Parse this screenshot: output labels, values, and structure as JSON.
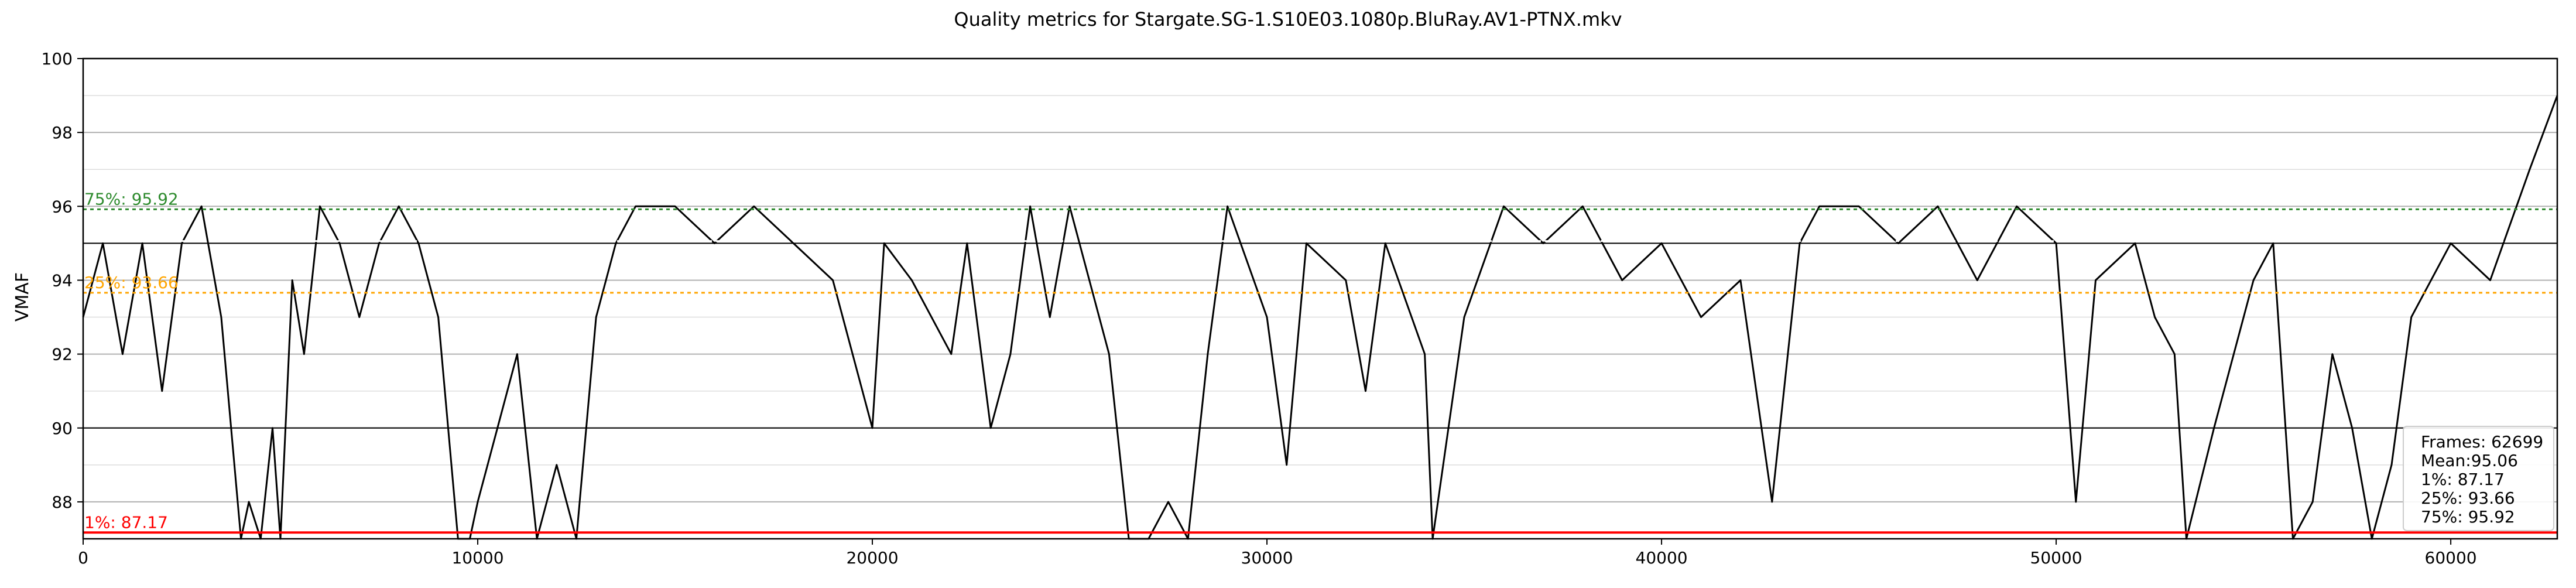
{
  "chart_data": {
    "type": "line",
    "title": "Quality metrics for Stargate.SG-1.S10E03.1080p.BluRay.AV1-PTNX.mkv",
    "xlabel": "",
    "ylabel": "VMAF",
    "xlim": [
      0,
      62699
    ],
    "ylim": [
      87,
      100
    ],
    "x_ticks": [
      "0",
      "10000",
      "20000",
      "30000",
      "40000",
      "50000",
      "60000"
    ],
    "y_ticks": [
      "88",
      "90",
      "92",
      "94",
      "96",
      "98",
      "100"
    ],
    "grid": true,
    "series": [
      {
        "color": "#000000",
        "x": [
          0,
          500,
          1000,
          1500,
          2000,
          2500,
          3000,
          3500,
          4000,
          4200,
          4500,
          4800,
          5000,
          5300,
          5600,
          6000,
          6500,
          7000,
          7500,
          8000,
          8500,
          9000,
          9500,
          9800,
          10000,
          10500,
          11000,
          11500,
          12000,
          12500,
          13000,
          13500,
          14000,
          15000,
          16000,
          17000,
          18000,
          19000,
          20000,
          20300,
          21000,
          22000,
          22400,
          23000,
          23500,
          24000,
          24500,
          25000,
          25500,
          26000,
          26500,
          27000,
          27500,
          28000,
          28500,
          29000,
          30000,
          30500,
          31000,
          32000,
          32500,
          33000,
          34000,
          34200,
          35000,
          36000,
          37000,
          38000,
          39000,
          40000,
          41000,
          42000,
          42800,
          43500,
          44000,
          45000,
          46000,
          47000,
          48000,
          49000,
          50000,
          50500,
          51000,
          52000,
          52500,
          53000,
          53300,
          54000,
          55000,
          55500,
          56000,
          56500,
          57000,
          57500,
          58000,
          58500,
          59000,
          60000,
          61000,
          62000,
          62699
        ],
        "values": [
          93,
          95,
          92,
          95,
          91,
          95,
          96,
          93,
          87,
          88,
          87,
          90,
          87,
          94,
          92,
          96,
          95,
          93,
          95,
          96,
          95,
          93,
          87,
          87,
          88,
          90,
          92,
          87,
          89,
          87,
          93,
          95,
          96,
          96,
          95,
          96,
          95,
          94,
          90,
          95,
          94,
          92,
          95,
          90,
          92,
          96,
          93,
          96,
          94,
          92,
          87,
          87,
          88,
          87,
          92,
          96,
          93,
          89,
          95,
          94,
          91,
          95,
          92,
          87,
          93,
          96,
          95,
          96,
          94,
          95,
          93,
          94,
          88,
          95,
          96,
          96,
          95,
          96,
          94,
          96,
          95,
          88,
          94,
          95,
          93,
          92,
          87,
          90,
          94,
          95,
          87,
          88,
          92,
          90,
          87,
          89,
          93,
          95,
          94,
          97,
          99
        ]
      }
    ],
    "reference_lines": [
      {
        "label": "75%: 95.92",
        "value": 95.92,
        "color": "#2e8b2e",
        "style": "dotted"
      },
      {
        "label": "Mean: 95.06",
        "value": 95.06,
        "color": "#ffffff",
        "style": "dotted"
      },
      {
        "label": "25%: 93.66",
        "value": 93.66,
        "color": "#ffa500",
        "style": "dotted"
      },
      {
        "label": "1%: 87.17",
        "value": 87.17,
        "color": "#ff0000",
        "style": "solid"
      }
    ],
    "stats_box": {
      "placement": "bottom-right",
      "lines": [
        "Frames: 62699",
        "Mean:95.06",
        "1%: 87.17",
        "25%: 93.66",
        "75%: 95.92"
      ]
    }
  }
}
